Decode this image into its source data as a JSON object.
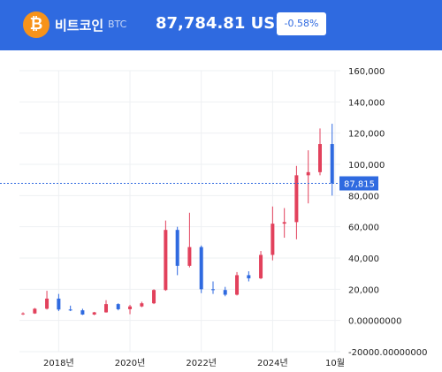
{
  "header": {
    "coin_icon_glyph": "₿",
    "coin_icon": "bitcoin-icon",
    "coin_name": "비트코인",
    "symbol": "BTC",
    "price": "87,784.81 USDT",
    "change": "-0.58%"
  },
  "colors": {
    "header_bg": "#2f6ae0",
    "up": "#e2415c",
    "down": "#2f6ae0",
    "current_line": "#2f6ae0"
  },
  "chart_data": {
    "type": "candlestick",
    "title": "",
    "xlabel": "",
    "ylabel": "",
    "ylim": [
      -20000,
      160000
    ],
    "y_ticks": [
      "160,000",
      "140,000",
      "120,000",
      "100,000",
      "80,000",
      "60,000",
      "40,000",
      "20,000",
      "0.00000000",
      "-20000.00000000"
    ],
    "y_tick_values": [
      160000,
      140000,
      120000,
      100000,
      80000,
      60000,
      40000,
      20000,
      0,
      -20000
    ],
    "x_ticks": [
      "2018년",
      "2020년",
      "2022년",
      "2024년",
      "10월"
    ],
    "x_tick_values": [
      2018.0,
      2020.0,
      2022.0,
      2024.0,
      2025.75
    ],
    "current_price_label": "87,815",
    "current_price": 87815,
    "grid": true,
    "candles": [
      {
        "t": 2017.0,
        "o": 4000,
        "h": 5200,
        "l": 3500,
        "c": 4500
      },
      {
        "t": 2017.33,
        "o": 4500,
        "h": 8000,
        "l": 4200,
        "c": 7500
      },
      {
        "t": 2017.67,
        "o": 7500,
        "h": 19000,
        "l": 7000,
        "c": 14000
      },
      {
        "t": 2018.0,
        "o": 14000,
        "h": 17000,
        "l": 6000,
        "c": 7000
      },
      {
        "t": 2018.33,
        "o": 7000,
        "h": 9500,
        "l": 6000,
        "c": 6500
      },
      {
        "t": 2018.67,
        "o": 6500,
        "h": 7500,
        "l": 3500,
        "c": 3800
      },
      {
        "t": 2019.0,
        "o": 3800,
        "h": 5500,
        "l": 3400,
        "c": 5200
      },
      {
        "t": 2019.33,
        "o": 5200,
        "h": 13000,
        "l": 5000,
        "c": 10500
      },
      {
        "t": 2019.67,
        "o": 10500,
        "h": 11000,
        "l": 6500,
        "c": 7200
      },
      {
        "t": 2020.0,
        "o": 7200,
        "h": 10000,
        "l": 4000,
        "c": 9000
      },
      {
        "t": 2020.33,
        "o": 9000,
        "h": 12000,
        "l": 8500,
        "c": 11000
      },
      {
        "t": 2020.67,
        "o": 11000,
        "h": 20000,
        "l": 10500,
        "c": 19500
      },
      {
        "t": 2021.0,
        "o": 19500,
        "h": 64000,
        "l": 19000,
        "c": 58000
      },
      {
        "t": 2021.33,
        "o": 58000,
        "h": 60000,
        "l": 29000,
        "c": 35000
      },
      {
        "t": 2021.67,
        "o": 35000,
        "h": 69000,
        "l": 34000,
        "c": 47000
      },
      {
        "t": 2022.0,
        "o": 47000,
        "h": 48000,
        "l": 17500,
        "c": 20000
      },
      {
        "t": 2022.33,
        "o": 20000,
        "h": 25000,
        "l": 17000,
        "c": 19500
      },
      {
        "t": 2022.67,
        "o": 19500,
        "h": 21500,
        "l": 15500,
        "c": 16500
      },
      {
        "t": 2023.0,
        "o": 16500,
        "h": 31000,
        "l": 16000,
        "c": 29000
      },
      {
        "t": 2023.33,
        "o": 29000,
        "h": 31500,
        "l": 25000,
        "c": 27000
      },
      {
        "t": 2023.67,
        "o": 27000,
        "h": 44500,
        "l": 26500,
        "c": 42000
      },
      {
        "t": 2024.0,
        "o": 42000,
        "h": 73000,
        "l": 38500,
        "c": 62000
      },
      {
        "t": 2024.33,
        "o": 62000,
        "h": 72000,
        "l": 53000,
        "c": 63000
      },
      {
        "t": 2024.67,
        "o": 63000,
        "h": 99000,
        "l": 52000,
        "c": 93000
      },
      {
        "t": 2025.0,
        "o": 93000,
        "h": 109000,
        "l": 75000,
        "c": 95000
      },
      {
        "t": 2025.33,
        "o": 95000,
        "h": 123000,
        "l": 93000,
        "c": 113000
      },
      {
        "t": 2025.67,
        "o": 113000,
        "h": 126000,
        "l": 80000,
        "c": 87815
      }
    ]
  }
}
